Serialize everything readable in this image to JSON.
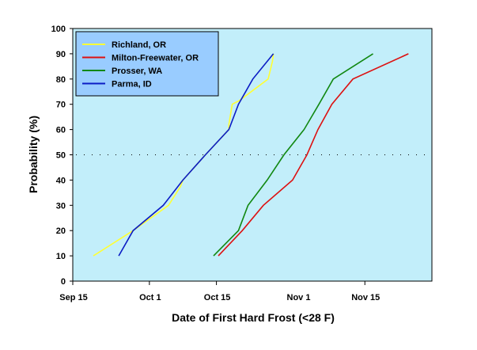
{
  "chart_data": {
    "type": "line",
    "title": "",
    "xlabel": "Date of First Hard Frost (<28 F)",
    "ylabel": "Probability (%)",
    "x_units": "days after Sep 15",
    "xlim": [
      0,
      75
    ],
    "ylim": [
      0,
      100
    ],
    "yticks": [
      0,
      10,
      20,
      30,
      40,
      50,
      60,
      70,
      80,
      90,
      100
    ],
    "xticks": [
      {
        "value": 0,
        "label": "Sep 15",
        "tick": true
      },
      {
        "value": 16,
        "label": "Oct 1",
        "tick": true
      },
      {
        "value": 30,
        "label": "Oct 15",
        "tick": true
      },
      {
        "value": 47,
        "label": "Nov 1",
        "tick": false
      },
      {
        "value": 61,
        "label": "Nov 15",
        "tick": true
      }
    ],
    "reference_line": {
      "y": 50,
      "style": "dotted"
    },
    "legend_position": "top-left",
    "grid": false,
    "background": "#C2EEFA",
    "legend_background": "#99CCFF",
    "series": [
      {
        "name": "Richland, OR",
        "color": "#FFFF33",
        "points": [
          [
            4.3,
            10
          ],
          [
            12.6,
            20
          ],
          [
            20,
            30
          ],
          [
            22.5,
            37.5
          ],
          [
            23,
            40
          ],
          [
            27.7,
            50
          ],
          [
            32.6,
            60
          ],
          [
            32.6,
            62
          ],
          [
            33.3,
            70
          ],
          [
            34.8,
            71.5
          ],
          [
            40.8,
            80
          ],
          [
            41.7,
            87
          ],
          [
            41.9,
            90
          ]
        ]
      },
      {
        "name": "Milton-Freewater, OR",
        "color": "#DD1111",
        "points": [
          [
            30.4,
            10
          ],
          [
            35.4,
            20
          ],
          [
            39.8,
            30
          ],
          [
            45.9,
            40
          ],
          [
            48.9,
            50
          ],
          [
            51.2,
            60
          ],
          [
            54.1,
            70
          ],
          [
            58.5,
            80
          ],
          [
            70.1,
            90
          ]
        ]
      },
      {
        "name": "Prosser, WA",
        "color": "#118811",
        "points": [
          [
            29.4,
            10
          ],
          [
            34.6,
            20
          ],
          [
            36.6,
            30
          ],
          [
            40.6,
            40
          ],
          [
            44.1,
            50
          ],
          [
            48.3,
            60
          ],
          [
            51.4,
            70
          ],
          [
            54.4,
            80
          ],
          [
            62.7,
            90
          ]
        ]
      },
      {
        "name": "Parma, ID",
        "color": "#0B1CC4",
        "points": [
          [
            9.6,
            10
          ],
          [
            12.6,
            20
          ],
          [
            18.9,
            30
          ],
          [
            23,
            40
          ],
          [
            27.7,
            50
          ],
          [
            32.6,
            60
          ],
          [
            34.6,
            70
          ],
          [
            37.6,
            80
          ],
          [
            41.9,
            90
          ]
        ]
      }
    ]
  }
}
